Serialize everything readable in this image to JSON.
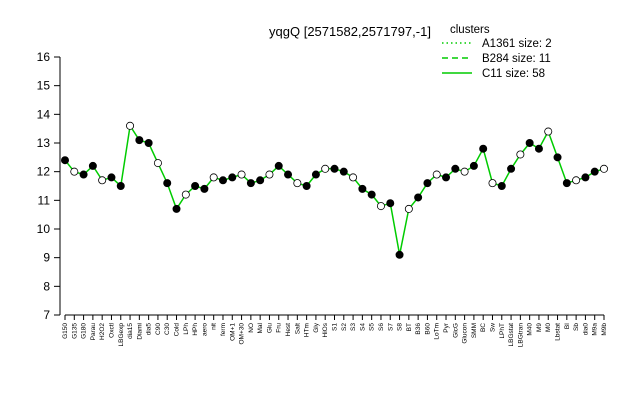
{
  "chart_data": {
    "type": "line",
    "title": "yqgQ [2571582,2571797,-1]",
    "xlabel": "",
    "ylabel": "",
    "ylim": [
      7,
      16
    ],
    "yticks": [
      7,
      8,
      9,
      10,
      11,
      12,
      13,
      14,
      15,
      16
    ],
    "grid": false,
    "legend": {
      "title": "clusters",
      "placement": "top-right",
      "entries": [
        {
          "label": "A1361 size: 2",
          "style": "dotted"
        },
        {
          "label": "B284 size: 11",
          "style": "dashed"
        },
        {
          "label": "C11 size: 58",
          "style": "solid"
        }
      ]
    },
    "colors": {
      "series": "#00cc00",
      "marker_filled": "#000000",
      "marker_open": "#ffffff"
    },
    "x_tick_labels": [
      "G150",
      "G135",
      "G180",
      "Parau",
      "H2O2",
      "Oxctl",
      "LBGexp",
      "dia15",
      "Diami",
      "dia5",
      "C90",
      "C30",
      "Cold",
      "LPh",
      "HPh",
      "aero",
      "nit",
      "ferm",
      "OM+1",
      "OM+30",
      "NO",
      "Mal",
      "Glu",
      "Fru",
      "Hest",
      "Salt",
      "HTm",
      "Gly",
      "HiOs",
      "S1",
      "S2",
      "S3",
      "S4",
      "S5",
      "S6",
      "S7",
      "S8",
      "BT",
      "B36",
      "B60",
      "LoTm",
      "Pyr",
      "GlcG",
      "Glucon",
      "SMM",
      "BC",
      "Sw",
      "LPhT",
      "LBGstat",
      "LBGtran",
      "M40",
      "M9",
      "M0",
      "Lbstat",
      "BI",
      "Sb",
      "dia0",
      "M9a",
      "M9b"
    ],
    "series": [
      {
        "name": "",
        "values": [
          12.4,
          12.0,
          11.9,
          12.2,
          11.7,
          11.8,
          11.5,
          13.6,
          13.1,
          13.0,
          12.3,
          11.6,
          10.7,
          11.2,
          11.5,
          11.4,
          11.8,
          11.7,
          11.8,
          11.9,
          11.6,
          11.7,
          11.9,
          12.2,
          11.9,
          11.6,
          11.5,
          11.9,
          12.1,
          12.1,
          12.0,
          11.8,
          11.4,
          11.2,
          10.8,
          10.9,
          9.1,
          10.7,
          11.1,
          11.6,
          11.9,
          11.8,
          12.1,
          12.0,
          12.2,
          12.8,
          11.6,
          11.5,
          12.1,
          12.6,
          13.0,
          12.8,
          13.4,
          12.5,
          11.6,
          11.7,
          11.8,
          12.0,
          12.1
        ]
      }
    ]
  }
}
